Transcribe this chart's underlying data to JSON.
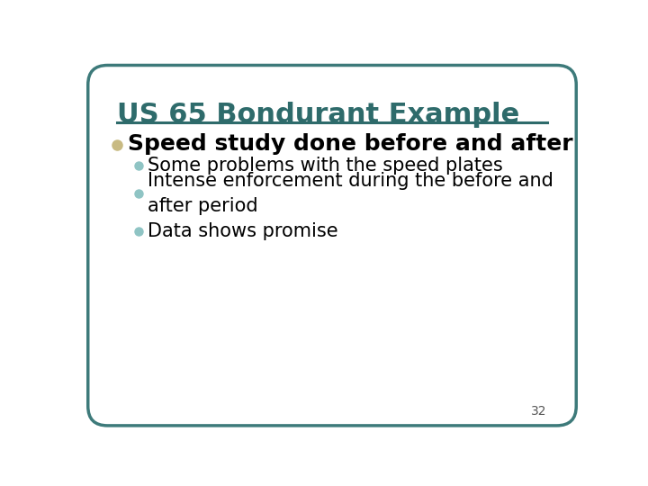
{
  "title": "US 65 Bondurant Example",
  "title_color": "#2E6B6B",
  "title_fontsize": 22,
  "line_color": "#2E6B6B",
  "background_color": "#FFFFFF",
  "border_color": "#3D7A7A",
  "bullet1_text": "Speed study done before and after",
  "bullet1_color": "#000000",
  "bullet1_dot_color": "#C8BA82",
  "bullet1_fontsize": 18,
  "sub_bullets": [
    "Some problems with the speed plates",
    "Intense enforcement during the before and\nafter period",
    "Data shows promise"
  ],
  "sub_bullet_color": "#000000",
  "sub_bullet_dot_color": "#8FC4C4",
  "sub_bullet_fontsize": 15,
  "page_number": "32",
  "page_number_fontsize": 10,
  "page_number_color": "#555555"
}
